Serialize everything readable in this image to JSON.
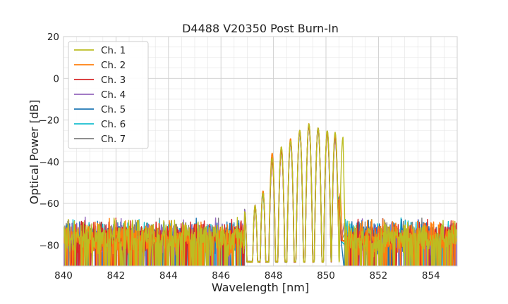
{
  "chart_data": {
    "type": "line",
    "title": "D4488 V20350 Post Burn-In",
    "xlabel": "Wavelength [nm]",
    "ylabel": "Optical Power [dB]",
    "xlim": [
      840,
      855
    ],
    "ylim": [
      -90,
      20
    ],
    "x_ticks": [
      840,
      842,
      844,
      846,
      848,
      850,
      852,
      854
    ],
    "x_tick_labels": [
      "840",
      "842",
      "844",
      "846",
      "848",
      "850",
      "852",
      "854"
    ],
    "y_ticks": [
      -80,
      -60,
      -40,
      -20,
      0,
      20
    ],
    "y_tick_labels": [
      "−80",
      "−60",
      "−40",
      "−20",
      "0",
      "20"
    ],
    "minor_grid_step": {
      "x": 0.5,
      "y": 5
    },
    "grid": true,
    "legend": "upper-left",
    "noise_floor": {
      "level": -76,
      "spread": 14,
      "x_range": [
        840,
        846.9
      ]
    },
    "noise_floor_right": {
      "x_range": [
        850.7,
        855
      ]
    },
    "series": [
      {
        "name": "Ch. 1",
        "color": "#bcbd22",
        "x": [
          846.9,
          847.3,
          847.6,
          847.95,
          848.3,
          848.65,
          849.0,
          849.35,
          849.7,
          850.05,
          850.35,
          850.65
        ],
        "peaks": [
          -64,
          -61,
          -55,
          -38,
          -33,
          -30,
          -25,
          -22,
          -24,
          -25,
          -26,
          -28
        ]
      },
      {
        "name": "Ch. 2",
        "color": "#ff7f0e",
        "x": [
          846.9,
          847.3,
          847.6,
          847.95,
          848.3,
          848.65,
          849.0,
          849.35,
          849.7,
          850.05,
          850.35,
          850.55
        ],
        "peaks": [
          -64,
          -61,
          -54,
          -36,
          -33,
          -29,
          -25,
          -22,
          -24,
          -26,
          -27,
          -55
        ]
      },
      {
        "name": "Ch. 3",
        "color": "#d62728",
        "x": [
          846.9,
          847.3,
          847.6,
          847.95,
          848.3,
          848.65,
          849.0,
          849.35,
          849.7,
          850.05,
          850.35,
          850.5
        ],
        "peaks": [
          -64,
          -62,
          -55,
          -40,
          -35,
          -30,
          -25,
          -23,
          -24,
          -26,
          -28,
          -58
        ]
      },
      {
        "name": "Ch. 4",
        "color": "#9467bd",
        "x": [
          846.9,
          847.3,
          847.6,
          847.95,
          848.3,
          848.65,
          849.0,
          849.35,
          849.7,
          850.05,
          850.35,
          850.5
        ],
        "peaks": [
          -63,
          -62,
          -55,
          -39,
          -34,
          -31,
          -26,
          -23,
          -25,
          -27,
          -29,
          -58
        ]
      },
      {
        "name": "Ch. 5",
        "color": "#1f77b4",
        "x": [
          846.9,
          847.3,
          847.6,
          847.95,
          848.3,
          848.65,
          849.0,
          849.35,
          849.7,
          850.05,
          850.35,
          850.5
        ],
        "peaks": [
          -64,
          -61,
          -55,
          -39,
          -34,
          -30,
          -26,
          -23,
          -24,
          -27,
          -29,
          -57
        ]
      },
      {
        "name": "Ch. 6",
        "color": "#17becf",
        "x": [
          846.9,
          847.3,
          847.6,
          847.95,
          848.3,
          848.65,
          849.0,
          849.35,
          849.7,
          850.05,
          850.35,
          850.5
        ],
        "peaks": [
          -64,
          -62,
          -56,
          -39,
          -34,
          -30,
          -26,
          -23,
          -25,
          -26,
          -28,
          -57
        ]
      },
      {
        "name": "Ch. 7",
        "color": "#7f7f7f",
        "x": [
          846.9,
          847.3,
          847.6,
          847.95,
          848.3,
          848.65,
          849.0,
          849.35,
          849.7,
          850.05,
          850.35,
          850.5
        ],
        "peaks": [
          -63,
          -62,
          -54,
          -38,
          -34,
          -31,
          -26,
          -22,
          -24,
          -26,
          -27,
          -57
        ]
      }
    ]
  }
}
